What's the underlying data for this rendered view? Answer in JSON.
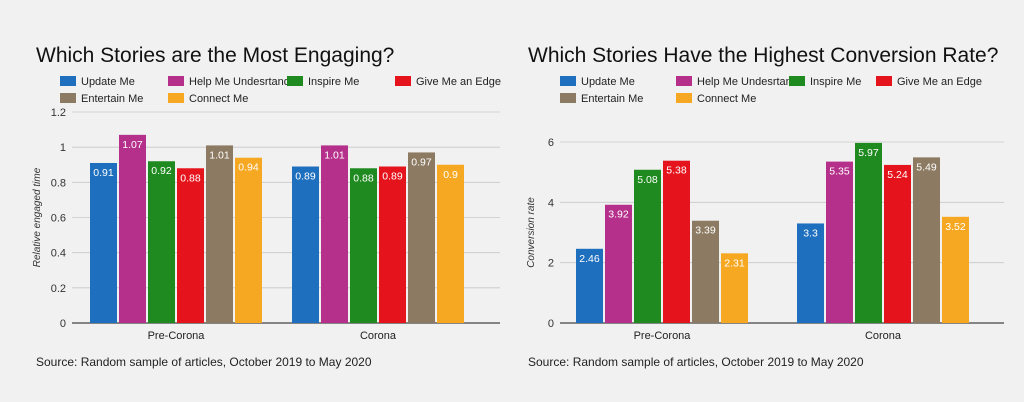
{
  "chart_data": [
    {
      "type": "bar",
      "title": "Which Stories are the Most Engaging?",
      "xlabel": "",
      "ylabel": "Relative engaged time",
      "ylim": [
        0,
        1.2
      ],
      "yticks": [
        "0",
        "0.2",
        "0.4",
        "0.6",
        "0.8",
        "1",
        "1.2"
      ],
      "yticks_values": [
        0,
        0.2,
        0.4,
        0.6,
        0.8,
        1.0,
        1.2
      ],
      "categories": [
        "Pre-Corona",
        "Corona"
      ],
      "series": [
        {
          "name": "Update Me",
          "color": "#1f6fbf",
          "values": [
            0.91,
            0.89
          ],
          "labels": [
            "0.91",
            "0.89"
          ]
        },
        {
          "name": "Help Me Undesrtand",
          "color": "#b5308a",
          "values": [
            1.07,
            1.01
          ],
          "labels": [
            "1.07",
            "1.01"
          ]
        },
        {
          "name": "Inspire Me",
          "color": "#1f8a1f",
          "values": [
            0.92,
            0.88
          ],
          "labels": [
            "0.92",
            "0.88"
          ]
        },
        {
          "name": "Give Me an Edge",
          "color": "#e5141c",
          "values": [
            0.88,
            0.89
          ],
          "labels": [
            "0.88",
            "0.89"
          ]
        },
        {
          "name": "Entertain Me",
          "color": "#8c7b62",
          "values": [
            1.01,
            0.97
          ],
          "labels": [
            "1.01",
            "0.97"
          ]
        },
        {
          "name": "Connect Me",
          "color": "#f7a823",
          "values": [
            0.94,
            0.9
          ],
          "labels": [
            "0.94",
            "0.9"
          ]
        }
      ],
      "source": "Source: Random sample of articles, October 2019 to May 2020",
      "grid": true,
      "legend": "top"
    },
    {
      "type": "bar",
      "title": "Which Stories Have the Highest Conversion Rate?",
      "xlabel": "",
      "ylabel": "Conversion rate",
      "ylim": [
        0,
        6
      ],
      "yticks": [
        "0",
        "2",
        "4",
        "6"
      ],
      "yticks_values": [
        0,
        2,
        4,
        6
      ],
      "categories": [
        "Pre-Corona",
        "Corona"
      ],
      "series": [
        {
          "name": "Update Me",
          "color": "#1f6fbf",
          "values": [
            2.46,
            3.3
          ],
          "labels": [
            "2.46",
            "3.3"
          ]
        },
        {
          "name": "Help Me Undesrtand",
          "color": "#b5308a",
          "values": [
            3.92,
            5.35
          ],
          "labels": [
            "3.92",
            "5.35"
          ]
        },
        {
          "name": "Inspire Me",
          "color": "#1f8a1f",
          "values": [
            5.08,
            5.97
          ],
          "labels": [
            "5.08",
            "5.97"
          ]
        },
        {
          "name": "Give Me an Edge",
          "color": "#e5141c",
          "values": [
            5.38,
            5.24
          ],
          "labels": [
            "5.38",
            "5.24"
          ]
        },
        {
          "name": "Entertain Me",
          "color": "#8c7b62",
          "values": [
            3.39,
            5.49
          ],
          "labels": [
            "3.39",
            "5.49"
          ]
        },
        {
          "name": "Connect Me",
          "color": "#f7a823",
          "values": [
            2.31,
            3.52
          ],
          "labels": [
            "2.31",
            "3.52"
          ]
        }
      ],
      "source": "Source: Random sample of articles, October 2019 to May 2020",
      "grid": true,
      "legend": "top"
    }
  ]
}
